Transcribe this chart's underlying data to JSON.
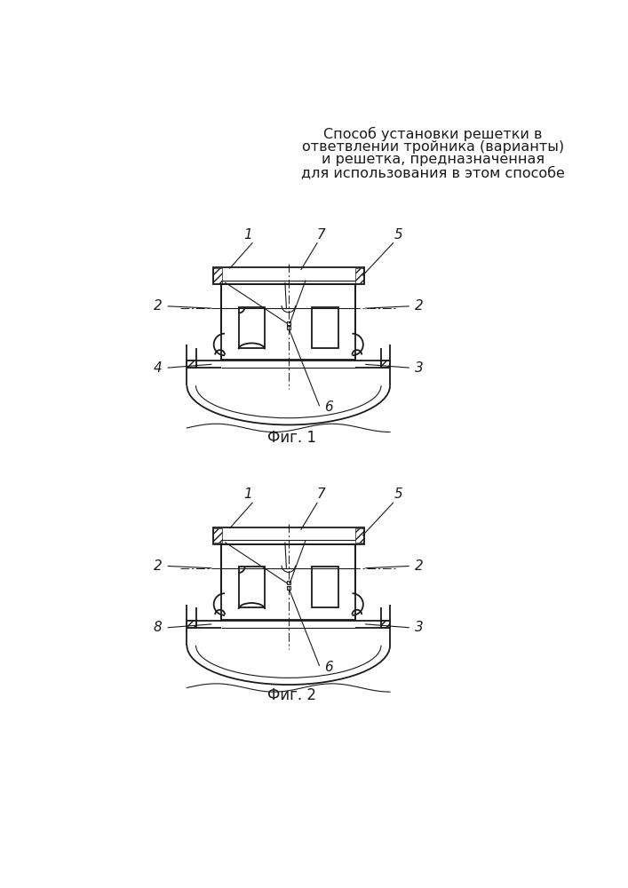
{
  "title_lines": [
    "Способ установки решетки в",
    "ответвлении тройника (варианты)",
    "и решетка, предназначенная",
    "для использования в этом способе"
  ],
  "fig1_caption": "Фиг. 1",
  "fig2_caption": "Фиг. 2",
  "line_color": "#1a1a1a",
  "bg_color": "#ffffff",
  "title_fontsize": 11.5,
  "label_fontsize": 11,
  "caption_fontsize": 12
}
